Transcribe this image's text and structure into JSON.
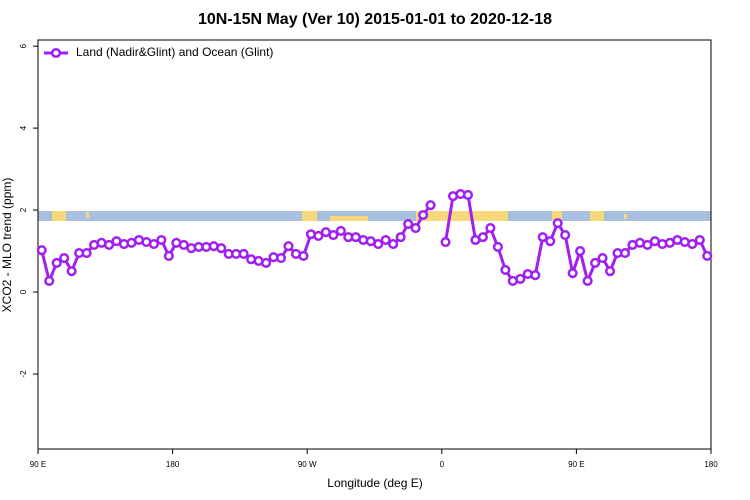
{
  "chart_data": {
    "type": "line",
    "title": "10N-15N May (Ver 10)   2015-01-01 to 2020-12-18",
    "x_label": "Longitude (deg E)",
    "y_label": "XCO2 - MLO trend (ppm)",
    "xlim": [
      90,
      540
    ],
    "xticks": [
      {
        "value": 90,
        "label": "90 E"
      },
      180,
      {
        "value": 270,
        "label": "90 W"
      },
      {
        "value": 360,
        "label": "0"
      },
      {
        "value": 450,
        "label": "90 E"
      },
      {
        "value": 540,
        "label": "180"
      }
    ],
    "ylim": [
      -3.83,
      6.15
    ],
    "yticks": [
      -2,
      0,
      2,
      4,
      6
    ],
    "legend": "top-left",
    "x": [
      92.5,
      97.5,
      102.5,
      107.5,
      112.5,
      117.5,
      122.5,
      127.5,
      132.5,
      137.5,
      142.5,
      147.5,
      152.5,
      157.5,
      162.5,
      167.5,
      172.5,
      177.5,
      182.5,
      187.5,
      192.5,
      197.5,
      202.5,
      207.5,
      212.5,
      217.5,
      222.5,
      227.5,
      232.5,
      237.5,
      242.5,
      247.5,
      252.5,
      257.5,
      262.5,
      267.5,
      272.5,
      277.5,
      282.5,
      287.5,
      292.5,
      297.5,
      302.5,
      307.5,
      312.5,
      317.5,
      322.5,
      327.5,
      332.5,
      337.5,
      342.5,
      347.5,
      352.5,
      357.5,
      362.5,
      367.5,
      372.5,
      377.5,
      382.5,
      387.5,
      392.5,
      397.5,
      402.5,
      407.5,
      412.5,
      417.5,
      422.5,
      427.5,
      432.5,
      437.5,
      442.5,
      447.5,
      452.5,
      457.5,
      462.5,
      467.5,
      472.5,
      477.5,
      482.5,
      487.5,
      492.5,
      497.5,
      502.5,
      507.5,
      512.5,
      517.5,
      522.5,
      527.5,
      532.5,
      537.5
    ],
    "series": [
      {
        "name": "Land (Nadir&Glint) and Ocean (Glint)",
        "color": "#a020f0",
        "values": [
          1.02,
          0.27,
          0.71,
          0.83,
          0.51,
          0.95,
          0.95,
          1.15,
          1.2,
          1.15,
          1.24,
          1.17,
          1.2,
          1.27,
          1.22,
          1.17,
          1.27,
          0.88,
          1.2,
          1.15,
          1.07,
          1.1,
          1.1,
          1.12,
          1.07,
          0.93,
          0.93,
          0.93,
          0.8,
          0.76,
          0.71,
          0.85,
          0.83,
          1.12,
          0.93,
          0.88,
          1.41,
          1.37,
          1.46,
          1.39,
          1.49,
          1.34,
          1.34,
          1.27,
          1.24,
          1.17,
          1.27,
          1.17,
          1.34,
          1.66,
          1.56,
          1.88,
          2.12,
          null,
          1.22,
          2.34,
          2.39,
          2.37,
          1.27,
          1.34,
          1.56,
          1.1,
          0.54,
          0.27,
          0.32,
          0.44,
          0.41,
          1.34,
          1.24,
          1.68,
          1.39,
          0.46,
          1.0,
          0.27,
          0.71,
          0.83,
          0.51,
          0.95,
          0.95,
          1.15,
          1.2,
          1.15,
          1.24,
          1.17,
          1.2,
          1.27,
          1.22,
          1.17,
          1.27,
          0.88
        ]
      }
    ]
  }
}
